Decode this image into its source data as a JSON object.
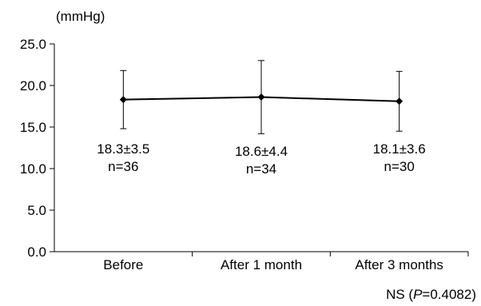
{
  "chart_data": {
    "type": "line",
    "ylabel": "(mmHg)",
    "ylim": [
      0,
      25
    ],
    "yticks": [
      "0.0",
      "5.0",
      "10.0",
      "15.0",
      "20.0",
      "25.0"
    ],
    "ytick_values": [
      0,
      5,
      10,
      15,
      20,
      25
    ],
    "categories": [
      "Before",
      "After 1 month",
      "After 3 months"
    ],
    "series": [
      {
        "values": [
          18.3,
          18.6,
          18.1
        ],
        "sd": [
          3.5,
          4.4,
          3.6
        ],
        "n": [
          36,
          34,
          30
        ],
        "labels": [
          "18.3±3.5",
          "18.6±4.4",
          "18.1±3.6"
        ],
        "n_labels": [
          "n=36",
          "n=34",
          "n=30"
        ]
      }
    ],
    "grid": false,
    "note_prefix": "NS (",
    "note_p": "P",
    "note_suffix": "=0.4082)"
  }
}
